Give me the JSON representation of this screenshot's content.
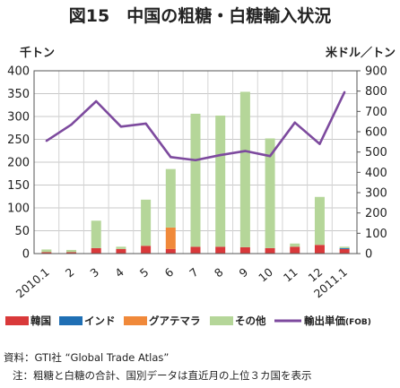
{
  "chart_data": {
    "type": "bar",
    "stacked": true,
    "title": "図15　中国の粗糖・白糖輸入状況",
    "left_axis_unit": "千トン",
    "right_axis_unit": "米ドル／トン",
    "left_ylim": [
      0,
      400
    ],
    "left_ticks": [
      "0",
      "50",
      "100",
      "150",
      "200",
      "250",
      "300",
      "350",
      "400"
    ],
    "right_ylim": [
      0,
      900
    ],
    "right_ticks": [
      "0",
      "100",
      "200",
      "300",
      "400",
      "500",
      "600",
      "700",
      "800",
      "900"
    ],
    "grid": true,
    "categories": [
      "2010.1",
      "2",
      "3",
      "4",
      "5",
      "6",
      "7",
      "8",
      "9",
      "10",
      "11",
      "12",
      "2011.1"
    ],
    "series": [
      {
        "name": "韓国",
        "color": "#d9393a",
        "values": [
          3,
          3,
          12,
          10,
          17,
          10,
          15,
          15,
          14,
          12,
          15,
          19,
          10
        ]
      },
      {
        "name": "インド",
        "color": "#1f6fb4",
        "values": [
          0,
          0,
          0,
          0,
          0,
          0,
          0,
          0,
          0,
          0,
          0,
          0,
          2
        ]
      },
      {
        "name": "グアテマラ",
        "color": "#f0893a",
        "values": [
          0,
          0,
          0,
          0,
          0,
          47,
          0,
          0,
          0,
          0,
          0,
          0,
          0
        ]
      },
      {
        "name": "その他",
        "color": "#b5d699",
        "values": [
          6,
          5,
          60,
          5,
          101,
          128,
          291,
          287,
          340,
          240,
          7,
          105,
          3
        ]
      }
    ],
    "line_series": {
      "name": "輸出単価",
      "name_suffix": "(FOB)",
      "color": "#7d4a9e",
      "axis": "right",
      "values": [
        555,
        635,
        750,
        625,
        640,
        475,
        460,
        485,
        505,
        480,
        645,
        540,
        795
      ]
    }
  },
  "notes": {
    "source": "資料：GTI社 “Global Trade Atlas”",
    "remark": "注：粗糖と白糖の合計、国別データは直近月の上位３カ国を表示"
  }
}
